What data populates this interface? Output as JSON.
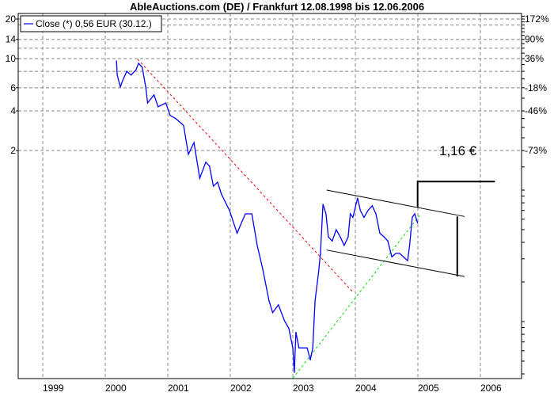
{
  "chart_data": {
    "type": "line",
    "title": "AbleAuctions.com (DE) / Frankfurt 12.08.1998 bis 12.06.2006",
    "y_scale": "log",
    "grid": true,
    "legend_position": "top-left",
    "ylim": [
      0.037,
      22
    ],
    "xlim": [
      "1998-08-12",
      "2006-06-12"
    ],
    "x_tick_labels": [
      "1999",
      "2000",
      "2001",
      "2002",
      "2003",
      "2004",
      "2005",
      "2006"
    ],
    "y_tick_labels_left": [
      {
        "value": 20,
        "label": "20"
      },
      {
        "value": 14,
        "label": "14"
      },
      {
        "value": 10,
        "label": "10"
      },
      {
        "value": 6,
        "label": "6"
      },
      {
        "value": 4,
        "label": "4"
      },
      {
        "value": 2,
        "label": "2"
      }
    ],
    "y_tick_labels_right": [
      {
        "value": 20,
        "label": "172%"
      },
      {
        "value": 14,
        "label": "90%"
      },
      {
        "value": 10,
        "label": "36%"
      },
      {
        "value": 6,
        "label": "-18%"
      },
      {
        "value": 4,
        "label": "-46%"
      },
      {
        "value": 2,
        "label": "-73%"
      }
    ],
    "y_gridlines": [
      20,
      18,
      14,
      12,
      10,
      8,
      6,
      4,
      2
    ],
    "series": [
      {
        "name": "Close (*) 0,56 EUR (30.12.)",
        "color": "#0000ff",
        "points": [
          [
            "2000-03-06",
            9.6
          ],
          [
            "2000-03-10",
            7.5
          ],
          [
            "2000-03-28",
            6.1
          ],
          [
            "2000-04-15",
            7.0
          ],
          [
            "2000-05-05",
            8.0
          ],
          [
            "2000-05-30",
            7.5
          ],
          [
            "2000-06-28",
            8.2
          ],
          [
            "2000-07-13",
            9.2
          ],
          [
            "2000-08-04",
            8.6
          ],
          [
            "2000-08-24",
            6.1
          ],
          [
            "2000-09-05",
            4.6
          ],
          [
            "2000-10-12",
            5.3
          ],
          [
            "2000-11-05",
            4.3
          ],
          [
            "2000-12-20",
            4.6
          ],
          [
            "2001-01-15",
            3.7
          ],
          [
            "2001-02-17",
            3.5
          ],
          [
            "2001-04-02",
            3.1
          ],
          [
            "2001-04-30",
            1.87
          ],
          [
            "2001-06-02",
            2.3
          ],
          [
            "2001-07-05",
            1.23
          ],
          [
            "2001-08-10",
            1.63
          ],
          [
            "2001-09-01",
            1.52
          ],
          [
            "2001-09-24",
            1.07
          ],
          [
            "2001-10-18",
            1.15
          ],
          [
            "2001-11-10",
            0.93
          ],
          [
            "2001-12-27",
            0.7
          ],
          [
            "2002-02-10",
            0.47
          ],
          [
            "2002-03-28",
            0.66
          ],
          [
            "2002-05-05",
            0.66
          ],
          [
            "2002-06-06",
            0.38
          ],
          [
            "2002-07-08",
            0.25
          ],
          [
            "2002-08-14",
            0.144
          ],
          [
            "2002-09-05",
            0.117
          ],
          [
            "2002-10-08",
            0.134
          ],
          [
            "2002-11-14",
            0.101
          ],
          [
            "2002-12-08",
            0.089
          ],
          [
            "2003-01-01",
            0.063
          ],
          [
            "2003-01-10",
            0.041
          ],
          [
            "2003-01-19",
            0.083
          ],
          [
            "2003-02-06",
            0.063
          ],
          [
            "2003-03-24",
            0.063
          ],
          [
            "2003-04-12",
            0.051
          ],
          [
            "2003-04-26",
            0.063
          ],
          [
            "2003-05-09",
            0.144
          ],
          [
            "2003-05-29",
            0.233
          ],
          [
            "2003-06-10",
            0.33
          ],
          [
            "2003-06-25",
            0.78
          ],
          [
            "2003-07-12",
            0.66
          ],
          [
            "2003-07-26",
            0.44
          ],
          [
            "2003-08-18",
            0.41
          ],
          [
            "2003-09-11",
            0.5
          ],
          [
            "2003-10-04",
            0.44
          ],
          [
            "2003-10-27",
            0.38
          ],
          [
            "2003-11-20",
            0.44
          ],
          [
            "2003-12-02",
            0.66
          ],
          [
            "2003-12-17",
            0.62
          ],
          [
            "2004-01-14",
            0.87
          ],
          [
            "2004-01-30",
            0.7
          ],
          [
            "2004-02-21",
            0.62
          ],
          [
            "2004-03-14",
            0.7
          ],
          [
            "2004-04-08",
            0.76
          ],
          [
            "2004-04-30",
            0.66
          ],
          [
            "2004-05-22",
            0.47
          ],
          [
            "2004-06-17",
            0.44
          ],
          [
            "2004-07-08",
            0.41
          ],
          [
            "2004-08-01",
            0.31
          ],
          [
            "2004-08-24",
            0.33
          ],
          [
            "2004-09-16",
            0.33
          ],
          [
            "2004-10-08",
            0.31
          ],
          [
            "2004-11-02",
            0.29
          ],
          [
            "2004-11-14",
            0.38
          ],
          [
            "2004-11-29",
            0.62
          ],
          [
            "2004-12-13",
            0.66
          ],
          [
            "2004-12-30",
            0.56
          ]
        ]
      }
    ],
    "annotations": {
      "trend_lines": [
        {
          "color": "#ff0000",
          "style": "dashed",
          "from": [
            "2000-07-08",
            9.9
          ],
          "to": [
            "2003-12-20",
            0.166
          ]
        },
        {
          "color": "#00dd00",
          "style": "dashed",
          "from": [
            "2003-01-01",
            0.037
          ],
          "to": [
            "2005-01-10",
            0.64
          ]
        },
        {
          "color": "#000000",
          "style": "solid",
          "from": [
            "2003-07-16",
            1.0
          ],
          "to": [
            "2005-09-30",
            0.63
          ]
        },
        {
          "color": "#000000",
          "style": "solid",
          "from": [
            "2003-07-16",
            0.35
          ],
          "to": [
            "2005-09-30",
            0.22
          ]
        }
      ],
      "channel_height_bar": {
        "date": "2005-08-18",
        "from": 0.63,
        "to": 0.22
      },
      "target_bracket": {
        "date": "2004-12-30",
        "from": 0.74,
        "to": 1.16,
        "end_date": "2006-03-25"
      },
      "target_label": "1,16 €"
    }
  }
}
